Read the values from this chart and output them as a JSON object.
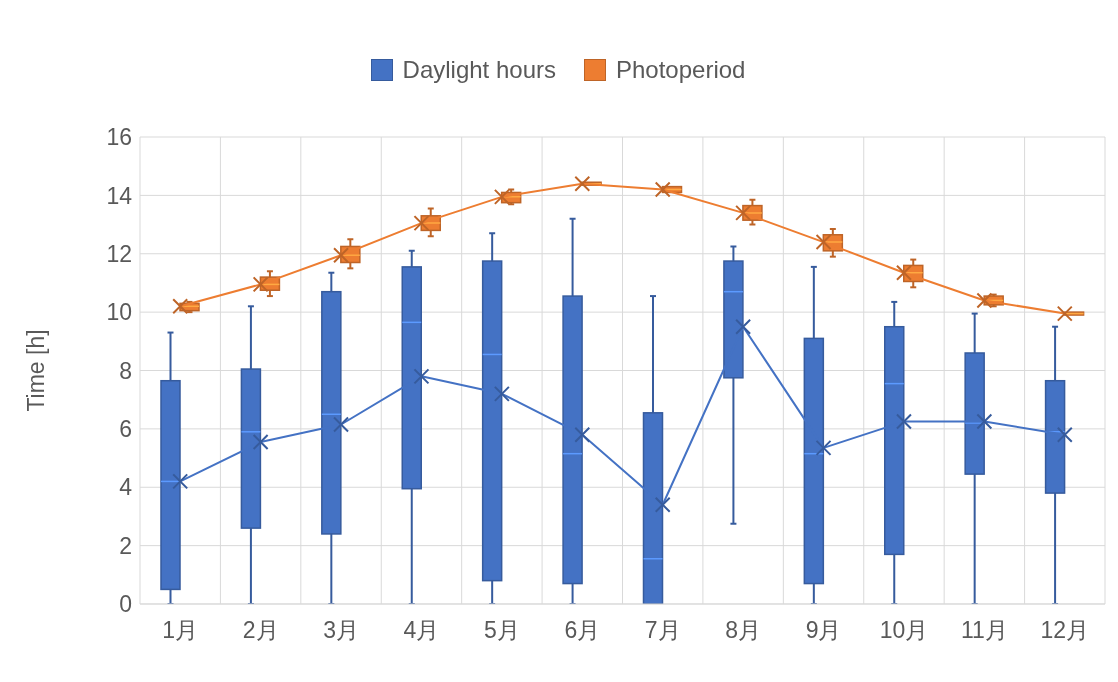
{
  "chart_data": {
    "type": "box",
    "ylabel": "Time [h]",
    "categories": [
      "1月",
      "2月",
      "3月",
      "4月",
      "5月",
      "6月",
      "7月",
      "8月",
      "9月",
      "10月",
      "11月",
      "12月"
    ],
    "series": [
      {
        "name": "Daylight hours",
        "color": "#4472c4",
        "boxes": [
          {
            "low": 0,
            "q1": 0.5,
            "median": 4.2,
            "q3": 7.65,
            "high": 9.3
          },
          {
            "low": 0,
            "q1": 2.6,
            "median": 5.9,
            "q3": 8.05,
            "high": 10.2
          },
          {
            "low": 0,
            "q1": 2.4,
            "median": 6.5,
            "q3": 10.7,
            "high": 11.35
          },
          {
            "low": 0,
            "q1": 3.95,
            "median": 9.65,
            "q3": 11.55,
            "high": 12.1
          },
          {
            "low": 0,
            "q1": 0.8,
            "median": 8.55,
            "q3": 11.75,
            "high": 12.7
          },
          {
            "low": 0,
            "q1": 0.7,
            "median": 5.15,
            "q3": 10.55,
            "high": 13.2
          },
          {
            "low": 0,
            "q1": 0,
            "median": 1.55,
            "q3": 6.55,
            "high": 10.55
          },
          {
            "low": 2.75,
            "q1": 7.75,
            "median": 10.7,
            "q3": 11.75,
            "high": 12.25
          },
          {
            "low": 0,
            "q1": 0.7,
            "median": 5.15,
            "q3": 9.1,
            "high": 11.55
          },
          {
            "low": 0,
            "q1": 1.7,
            "median": 7.55,
            "q3": 9.5,
            "high": 10.35
          },
          {
            "low": 0,
            "q1": 4.45,
            "median": 6.2,
            "q3": 8.6,
            "high": 9.95
          },
          {
            "low": 0,
            "q1": 3.8,
            "median": 5.9,
            "q3": 7.65,
            "high": 9.5
          }
        ]
      },
      {
        "name": "Photoperiod",
        "color": "#ed7d31",
        "boxes": [
          {
            "low": 10.0,
            "q1": 10.05,
            "median": 10.2,
            "q3": 10.3,
            "high": 10.35
          },
          {
            "low": 10.55,
            "q1": 10.75,
            "median": 10.95,
            "q3": 11.2,
            "high": 11.4
          },
          {
            "low": 11.5,
            "q1": 11.7,
            "median": 11.95,
            "q3": 12.25,
            "high": 12.5
          },
          {
            "low": 12.6,
            "q1": 12.8,
            "median": 13.05,
            "q3": 13.3,
            "high": 13.55
          },
          {
            "low": 13.7,
            "q1": 13.75,
            "median": 13.95,
            "q3": 14.1,
            "high": 14.2
          },
          {
            "low": 14.35,
            "q1": 14.35,
            "median": 14.4,
            "q3": 14.45,
            "high": 14.45
          },
          {
            "low": 14.1,
            "q1": 14.1,
            "median": 14.2,
            "q3": 14.3,
            "high": 14.3
          },
          {
            "low": 13.0,
            "q1": 13.15,
            "median": 13.4,
            "q3": 13.65,
            "high": 13.85
          },
          {
            "low": 11.9,
            "q1": 12.1,
            "median": 12.4,
            "q3": 12.65,
            "high": 12.85
          },
          {
            "low": 10.85,
            "q1": 11.05,
            "median": 11.35,
            "q3": 11.6,
            "high": 11.8
          },
          {
            "low": 10.2,
            "q1": 10.25,
            "median": 10.4,
            "q3": 10.55,
            "high": 10.6
          },
          {
            "low": 9.9,
            "q1": 9.9,
            "median": 9.95,
            "q3": 10.0,
            "high": 10.0
          }
        ]
      },
      {
        "type": "line",
        "color": "#4472c4",
        "values": [
          4.2,
          5.55,
          6.15,
          7.8,
          7.2,
          5.8,
          3.4,
          9.5,
          5.35,
          6.25,
          6.25,
          5.8
        ]
      },
      {
        "type": "line",
        "color": "#ed7d31",
        "values": [
          10.2,
          10.95,
          11.95,
          13.05,
          13.95,
          14.4,
          14.2,
          13.4,
          12.4,
          11.35,
          10.4,
          9.95
        ]
      }
    ],
    "ylim": [
      0,
      16
    ],
    "yticks": [
      0,
      2,
      4,
      6,
      8,
      10,
      12,
      14,
      16
    ],
    "grid": true,
    "legend": "top",
    "marker": "cross"
  }
}
